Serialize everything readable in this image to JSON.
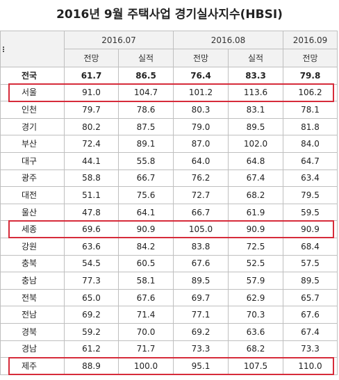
{
  "title": "2016년 9월 주택사업 경기실사지수(HBSI)",
  "header": {
    "months": [
      {
        "label": "2016.07"
      },
      {
        "label": "2016.08"
      },
      {
        "label": "2016.09"
      }
    ],
    "sub": [
      "전망",
      "실적",
      "전망",
      "실적",
      "전망"
    ]
  },
  "rows": [
    {
      "region": "전국",
      "bold": true,
      "values": [
        "61.7",
        "86.5",
        "76.4",
        "83.3",
        "79.8"
      ]
    },
    {
      "region": "서울",
      "highlight": true,
      "values": [
        "91.0",
        "104.7",
        "101.2",
        "113.6",
        "106.2"
      ]
    },
    {
      "region": "인천",
      "values": [
        "79.7",
        "78.6",
        "80.3",
        "83.1",
        "78.1"
      ]
    },
    {
      "region": "경기",
      "values": [
        "80.2",
        "87.5",
        "79.0",
        "89.5",
        "81.8"
      ]
    },
    {
      "region": "부산",
      "values": [
        "72.4",
        "89.1",
        "87.0",
        "102.0",
        "84.0"
      ]
    },
    {
      "region": "대구",
      "values": [
        "44.1",
        "55.8",
        "64.0",
        "64.8",
        "64.7"
      ]
    },
    {
      "region": "광주",
      "values": [
        "58.8",
        "66.7",
        "76.2",
        "67.4",
        "63.4"
      ]
    },
    {
      "region": "대전",
      "values": [
        "51.1",
        "75.6",
        "72.7",
        "68.2",
        "79.5"
      ]
    },
    {
      "region": "울산",
      "values": [
        "47.8",
        "64.1",
        "66.7",
        "61.9",
        "59.5"
      ]
    },
    {
      "region": "세종",
      "highlight": true,
      "values": [
        "69.6",
        "90.9",
        "105.0",
        "90.9",
        "90.9"
      ]
    },
    {
      "region": "강원",
      "values": [
        "63.6",
        "84.2",
        "83.8",
        "72.5",
        "68.4"
      ]
    },
    {
      "region": "충북",
      "values": [
        "54.5",
        "60.5",
        "67.6",
        "52.5",
        "57.5"
      ]
    },
    {
      "region": "충남",
      "values": [
        "77.3",
        "58.1",
        "89.5",
        "57.9",
        "89.5"
      ]
    },
    {
      "region": "전북",
      "values": [
        "65.0",
        "67.6",
        "69.7",
        "62.9",
        "65.7"
      ]
    },
    {
      "region": "전남",
      "values": [
        "69.2",
        "71.4",
        "77.1",
        "70.3",
        "67.6"
      ]
    },
    {
      "region": "경북",
      "values": [
        "59.2",
        "70.0",
        "69.2",
        "63.6",
        "67.4"
      ]
    },
    {
      "region": "경남",
      "values": [
        "61.2",
        "71.7",
        "73.3",
        "68.2",
        "73.3"
      ]
    },
    {
      "region": "제주",
      "highlight": true,
      "values": [
        "88.9",
        "100.0",
        "95.1",
        "107.5",
        "110.0"
      ]
    }
  ],
  "colors": {
    "highlight_border": "#d62b3a",
    "header_bg": "#f2f2f2",
    "grid": "#bfbfbf"
  }
}
